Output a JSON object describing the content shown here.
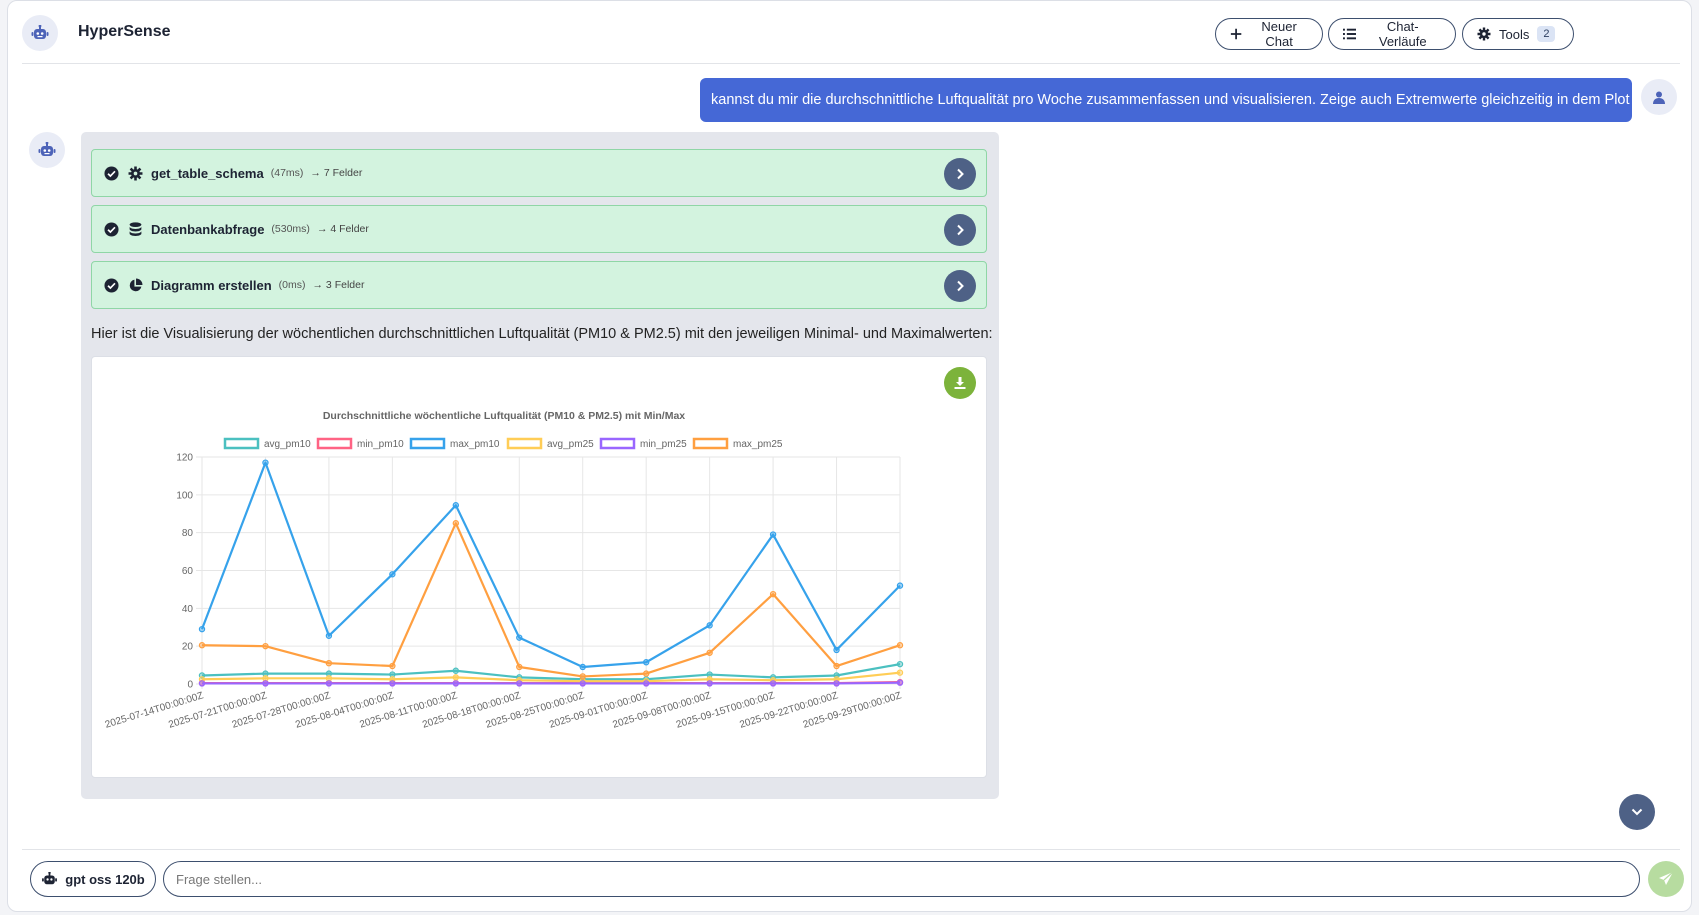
{
  "header": {
    "title": "HyperSense",
    "new_chat_label": "Neuer Chat",
    "history_label": "Chat-Verläufe",
    "tools_label": "Tools",
    "tools_count": "2"
  },
  "user_message": "kannst du mir die durchschnittliche Luftqualität pro Woche zusammenfassen und visualisieren. Zeige auch Extremwerte gleichzeitig in dem Plot",
  "tools": [
    {
      "name": "get_table_schema",
      "duration": "(47ms)",
      "result": "→ 7 Felder",
      "icon": "gear-icon"
    },
    {
      "name": "Datenbankabfrage",
      "duration": "(530ms)",
      "result": "→ 4 Felder",
      "icon": "database-icon"
    },
    {
      "name": "Diagramm erstellen",
      "duration": "(0ms)",
      "result": "→ 3 Felder",
      "icon": "pie-chart-icon"
    }
  ],
  "assistant_text": "Hier ist die Visualisierung der wöchentlichen durchschnittlichen Luftqualität (PM10 & PM2.5) mit den jeweiligen Minimal- und Maximalwerten:",
  "chart_data": {
    "type": "line",
    "title": "Durchschnittliche wöchentliche Luftqualität (PM10 & PM2.5) mit Min/Max",
    "x": [
      "2025-07-14T00:00:00Z",
      "2025-07-21T00:00:00Z",
      "2025-07-28T00:00:00Z",
      "2025-08-04T00:00:00Z",
      "2025-08-11T00:00:00Z",
      "2025-08-18T00:00:00Z",
      "2025-08-25T00:00:00Z",
      "2025-09-01T00:00:00Z",
      "2025-09-08T00:00:00Z",
      "2025-09-15T00:00:00Z",
      "2025-09-22T00:00:00Z",
      "2025-09-29T00:00:00Z"
    ],
    "ylim": [
      0,
      120
    ],
    "yticks": [
      0,
      20,
      40,
      60,
      80,
      100,
      120
    ],
    "grid": true,
    "legend": "top",
    "series": [
      {
        "name": "avg_pm10",
        "color": "#4bc0c0",
        "values": [
          4.5,
          5.5,
          5.5,
          5,
          7,
          3.5,
          2.5,
          2.5,
          5,
          3.5,
          4.5,
          10.5
        ]
      },
      {
        "name": "min_pm10",
        "color": "#ff6384",
        "values": [
          0.5,
          0.5,
          0.5,
          0.5,
          0.5,
          0.5,
          0.5,
          0.5,
          0.5,
          0.5,
          0.5,
          1
        ]
      },
      {
        "name": "max_pm10",
        "color": "#36a2eb",
        "values": [
          29,
          117,
          25.5,
          58,
          94.5,
          24.5,
          9,
          11.5,
          31,
          79,
          18,
          52
        ]
      },
      {
        "name": "avg_pm25",
        "color": "#ffcd56",
        "values": [
          2.5,
          3,
          3,
          2.5,
          3.5,
          2,
          1.5,
          1.5,
          2.5,
          2,
          2.5,
          6
        ]
      },
      {
        "name": "min_pm25",
        "color": "#9966ff",
        "values": [
          0.3,
          0.3,
          0.3,
          0.3,
          0.3,
          0.3,
          0.3,
          0.3,
          0.3,
          0.3,
          0.3,
          0.7
        ]
      },
      {
        "name": "max_pm25",
        "color": "#ff9f40",
        "values": [
          20.5,
          20,
          11,
          9.5,
          85,
          9,
          4,
          5.5,
          16.5,
          47.5,
          9.5,
          20.5
        ]
      }
    ]
  },
  "input": {
    "model_label": "gpt oss 120b",
    "placeholder": "Frage stellen..."
  }
}
